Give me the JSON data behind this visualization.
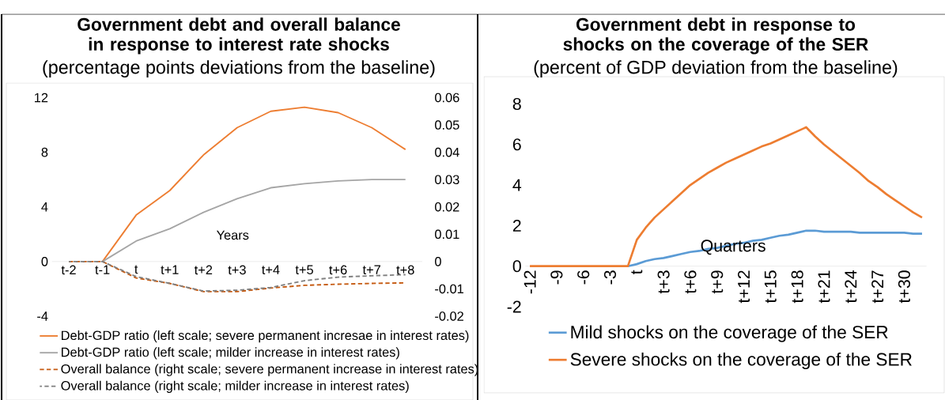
{
  "chart_data": [
    {
      "type": "line",
      "title": "Government debt and overall balance in response to interest rate shocks",
      "subtitle": "(percentage points deviations from the baseline)",
      "xlabel": "Years",
      "categories": [
        "t-2",
        "t-1",
        "t",
        "t+1",
        "t+2",
        "t+3",
        "t+4",
        "t+5",
        "t+6",
        "t+7",
        "t+8"
      ],
      "series": [
        {
          "name": "Debt-GDP ratio (left scale; severe permanent incresae in interest rates)",
          "color": "#ed7d31",
          "axis": "y",
          "line_style": "solid",
          "values": [
            null,
            0,
            3.4,
            5.2,
            7.8,
            9.8,
            11.0,
            11.3,
            10.9,
            9.8,
            8.2
          ]
        },
        {
          "name": "Debt-GDP ratio (left scale; milder increase in interest rates)",
          "color": "#a5a5a5",
          "axis": "y",
          "line_style": "solid",
          "values": [
            null,
            0,
            1.5,
            2.4,
            3.6,
            4.6,
            5.4,
            5.7,
            5.9,
            6.0,
            6.0
          ]
        },
        {
          "name": "Overall balance (right scale; severe permanent increase in interest rates)",
          "color": "#c55a11",
          "axis": "y2",
          "line_style": "dashed",
          "values": [
            0,
            0,
            -0.006,
            -0.008,
            -0.011,
            -0.011,
            -0.0097,
            -0.0087,
            -0.0083,
            -0.008,
            -0.0078
          ]
        },
        {
          "name": "Overall balance (right scale; milder increase in interest rates)",
          "color": "#7f7f7f",
          "axis": "y2",
          "line_style": "dashed",
          "values": [
            0,
            0,
            -0.0055,
            -0.008,
            -0.0108,
            -0.0105,
            -0.0095,
            -0.007,
            -0.0057,
            -0.0052,
            -0.0048
          ]
        }
      ],
      "ylim": [
        -4,
        12
      ],
      "yticks": [
        -4,
        0,
        4,
        8,
        12
      ],
      "y2lim": [
        -0.02,
        0.06
      ],
      "y2ticks": [
        -0.02,
        -0.01,
        0,
        0.01,
        0.02,
        0.03,
        0.04,
        0.05,
        0.06
      ],
      "legend": "bottom"
    },
    {
      "type": "line",
      "title": "Government debt in response to shocks on the coverage of the SER",
      "subtitle": "(percent of GDP deviation from the baseline)",
      "xlabel": "Quarters",
      "categories": [
        "-12",
        null,
        null,
        "-9",
        null,
        null,
        "-6",
        null,
        null,
        "-3",
        null,
        null,
        "t",
        null,
        null,
        "t+3",
        null,
        null,
        "t+6",
        null,
        null,
        "t+9",
        null,
        null,
        "t+12",
        null,
        null,
        "t+15",
        null,
        null,
        "t+18",
        null,
        null,
        "t+21",
        null,
        null,
        "t+24",
        null,
        null,
        "t+27",
        null,
        null,
        "t+30",
        null,
        null
      ],
      "series": [
        {
          "name": "Mild shocks on the coverage of the SER",
          "color": "#5b9bd5",
          "values": [
            null,
            null,
            null,
            null,
            null,
            null,
            null,
            null,
            null,
            null,
            null,
            0,
            0.1,
            0.25,
            0.35,
            0.4,
            0.5,
            0.6,
            0.7,
            0.75,
            0.85,
            0.9,
            1.0,
            1.1,
            1.15,
            1.25,
            1.3,
            1.4,
            1.5,
            1.55,
            1.65,
            1.75,
            1.75,
            1.7,
            1.7,
            1.7,
            1.7,
            1.65,
            1.65,
            1.65,
            1.65,
            1.65,
            1.65,
            1.6,
            1.6
          ]
        },
        {
          "name": "Severe shocks on the coverage of the SER",
          "color": "#ed7d31",
          "values": [
            0,
            0,
            0,
            0,
            0,
            0,
            0,
            0,
            0,
            0,
            0,
            0,
            1.3,
            1.9,
            2.4,
            2.8,
            3.2,
            3.6,
            4.0,
            4.3,
            4.6,
            4.85,
            5.1,
            5.3,
            5.5,
            5.7,
            5.9,
            6.05,
            6.25,
            6.45,
            6.65,
            6.85,
            6.4,
            6.0,
            5.65,
            5.3,
            4.95,
            4.6,
            4.2,
            3.9,
            3.55,
            3.25,
            2.95,
            2.65,
            2.4
          ]
        }
      ],
      "ylim": [
        -2,
        8
      ],
      "yticks": [
        -2,
        0,
        2,
        4,
        6,
        8
      ],
      "legend": "bottom"
    }
  ]
}
